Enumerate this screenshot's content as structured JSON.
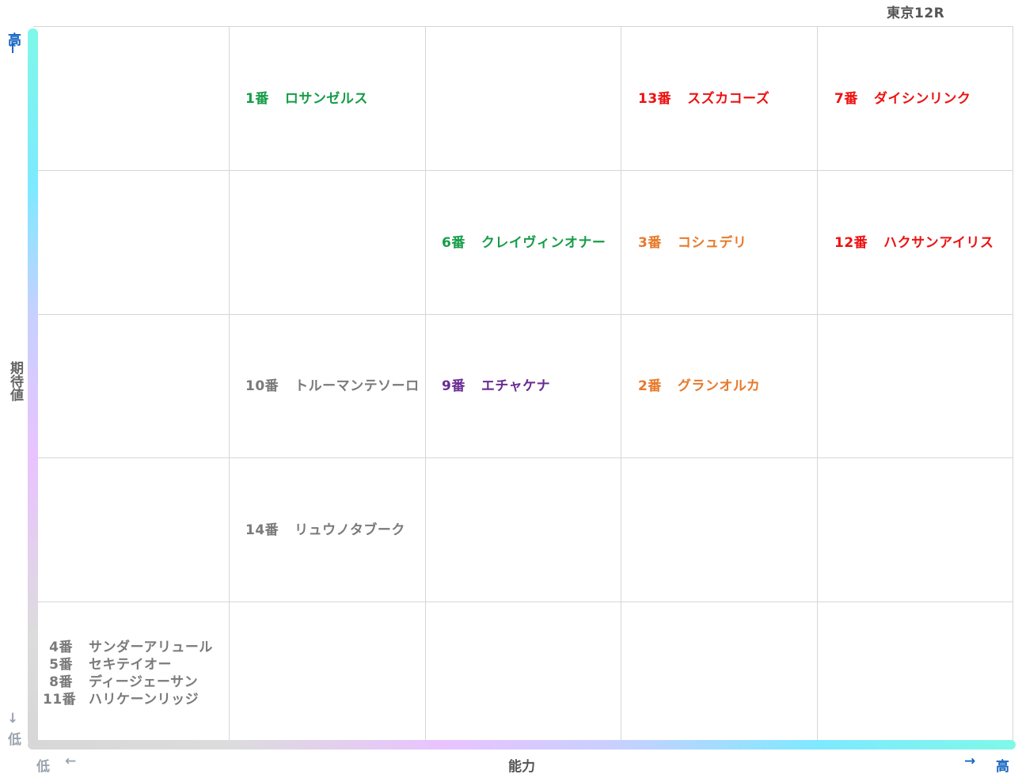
{
  "race_title": "東京12R",
  "colors": {
    "red": "#ee1111",
    "green": "#169c48",
    "orange": "#e8792a",
    "purple": "#6a2c91",
    "gray": "#7a7a7a",
    "axis_high": "#1565c0"
  },
  "chart_data": {
    "type": "table",
    "title": "東京12R",
    "xlabel": "能力",
    "ylabel": "期待値",
    "x_low_label": "低",
    "x_high_label": "高",
    "y_low_label": "低",
    "y_high_label": "高",
    "x_arrow_low": "←",
    "x_arrow_high": "→",
    "y_arrow_high": "↑",
    "y_arrow_low": "↓",
    "columns": 5,
    "rows": 5,
    "cells": [
      {
        "col": 2,
        "row": 5,
        "color": "green",
        "horses": [
          {
            "num": "1番",
            "name": "ロサンゼルス"
          }
        ]
      },
      {
        "col": 4,
        "row": 5,
        "color": "red",
        "horses": [
          {
            "num": "13番",
            "name": "スズカコーズ"
          }
        ]
      },
      {
        "col": 5,
        "row": 5,
        "color": "red",
        "horses": [
          {
            "num": "7番",
            "name": "ダイシンリンク"
          }
        ]
      },
      {
        "col": 3,
        "row": 4,
        "color": "green",
        "horses": [
          {
            "num": "6番",
            "name": "クレイヴィンオナー"
          }
        ]
      },
      {
        "col": 4,
        "row": 4,
        "color": "orange",
        "horses": [
          {
            "num": "3番",
            "name": "コシュデリ"
          }
        ]
      },
      {
        "col": 5,
        "row": 4,
        "color": "red",
        "horses": [
          {
            "num": "12番",
            "name": "ハクサンアイリス"
          }
        ]
      },
      {
        "col": 2,
        "row": 3,
        "color": "gray",
        "horses": [
          {
            "num": "10番",
            "name": "トルーマンテソーロ"
          }
        ]
      },
      {
        "col": 3,
        "row": 3,
        "color": "purple",
        "horses": [
          {
            "num": "9番",
            "name": "エチャケナ"
          }
        ]
      },
      {
        "col": 4,
        "row": 3,
        "color": "orange",
        "horses": [
          {
            "num": "2番",
            "name": "グランオルカ"
          }
        ]
      },
      {
        "col": 2,
        "row": 2,
        "color": "gray",
        "horses": [
          {
            "num": "14番",
            "name": "リュウノタブーク"
          }
        ]
      },
      {
        "col": 1,
        "row": 1,
        "color": "gray",
        "horses": [
          {
            "num": "4番",
            "name": "サンダーアリュール"
          },
          {
            "num": "5番",
            "name": "セキテイオー"
          },
          {
            "num": "8番",
            "name": "ディージェーサン"
          },
          {
            "num": "11番",
            "name": "ハリケーンリッジ"
          }
        ]
      }
    ]
  }
}
